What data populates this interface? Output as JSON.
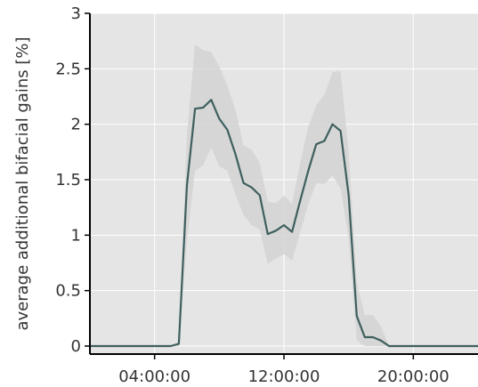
{
  "chart_data": {
    "type": "line",
    "title": "",
    "xlabel": "",
    "ylabel": "average additional bifacial gains [%]",
    "xlim_hours": [
      0,
      24
    ],
    "ylim": [
      0,
      3
    ],
    "x_ticks": [
      {
        "hour": 4,
        "label": "04:00:00"
      },
      {
        "hour": 12,
        "label": "12:00:00"
      },
      {
        "hour": 20,
        "label": "20:00:00"
      }
    ],
    "y_ticks": [
      {
        "value": 0,
        "label": "0"
      },
      {
        "value": 0.5,
        "label": "0.5"
      },
      {
        "value": 1,
        "label": "1"
      },
      {
        "value": 1.5,
        "label": "1.5"
      },
      {
        "value": 2,
        "label": "2"
      },
      {
        "value": 2.5,
        "label": "2.5"
      },
      {
        "value": 3,
        "label": "3"
      }
    ],
    "grid": true,
    "background_color": "#e5e5e5",
    "grid_color": "#ffffff",
    "line_color": "#3f5f5f",
    "band_color": "#d4d4d4",
    "x_hours": [
      0,
      0.5,
      1,
      1.5,
      2,
      2.5,
      3,
      3.5,
      4,
      4.5,
      5,
      5.5,
      6,
      6.5,
      7,
      7.5,
      8,
      8.5,
      9,
      9.5,
      10,
      10.5,
      11,
      11.5,
      12,
      12.5,
      13,
      13.5,
      14,
      14.5,
      15,
      15.5,
      16,
      16.5,
      17,
      17.5,
      18,
      18.5,
      19,
      19.5,
      20,
      20.5,
      21,
      21.5,
      22,
      22.5,
      23,
      23.5,
      24
    ],
    "series": [
      {
        "values": [
          0,
          0,
          0,
          0,
          0,
          0,
          0,
          0,
          0,
          0,
          0,
          0.02,
          1.45,
          2.14,
          2.15,
          2.22,
          2.05,
          1.95,
          1.73,
          1.47,
          1.43,
          1.36,
          1.01,
          1.04,
          1.09,
          1.03,
          1.31,
          1.58,
          1.82,
          1.85,
          2.0,
          1.94,
          1.36,
          0.27,
          0.08,
          0.08,
          0.05,
          0,
          0,
          0,
          0,
          0,
          0,
          0,
          0,
          0,
          0,
          0,
          0
        ],
        "upper": [
          0,
          0,
          0,
          0,
          0,
          0,
          0,
          0,
          0,
          0,
          0,
          0.05,
          1.9,
          2.72,
          2.67,
          2.65,
          2.52,
          2.35,
          2.13,
          1.81,
          1.77,
          1.65,
          1.3,
          1.29,
          1.36,
          1.28,
          1.65,
          1.98,
          2.17,
          2.27,
          2.47,
          2.48,
          1.75,
          0.57,
          0.28,
          0.28,
          0.18,
          0,
          0,
          0,
          0,
          0,
          0,
          0,
          0,
          0,
          0,
          0,
          0
        ],
        "lower": [
          0,
          0,
          0,
          0,
          0,
          0,
          0,
          0,
          0,
          0,
          0,
          0,
          0.95,
          1.58,
          1.63,
          1.79,
          1.62,
          1.58,
          1.37,
          1.18,
          1.09,
          1.05,
          0.74,
          0.79,
          0.83,
          0.77,
          1.02,
          1.28,
          1.47,
          1.46,
          1.54,
          1.42,
          0.97,
          0.05,
          0,
          0,
          0,
          0,
          0,
          0,
          0,
          0,
          0,
          0,
          0,
          0,
          0,
          0,
          0
        ]
      }
    ]
  }
}
